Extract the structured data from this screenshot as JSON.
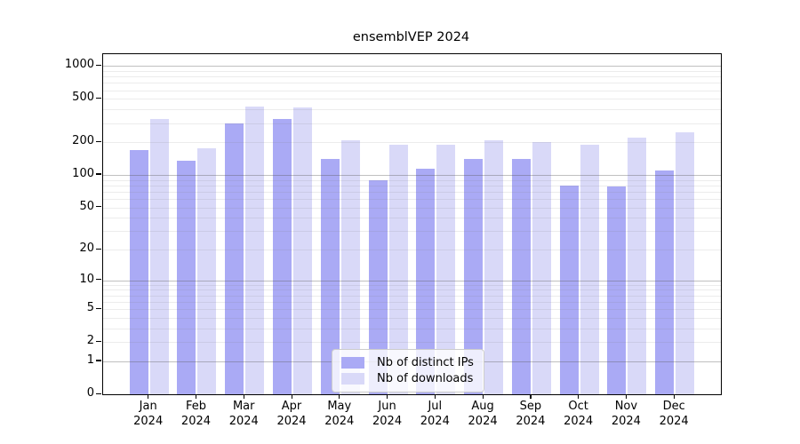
{
  "chart_data": {
    "type": "bar",
    "title": "ensemblVEP 2024",
    "y_scale": "log10(1+value)",
    "months": [
      "Jan",
      "Feb",
      "Mar",
      "Apr",
      "May",
      "Jun",
      "Jul",
      "Aug",
      "Sep",
      "Oct",
      "Nov",
      "Dec"
    ],
    "year_label": "2024",
    "series": [
      {
        "name": "Nb of distinct IPs",
        "color": "#aaaaf5",
        "values": [
          170,
          135,
          300,
          325,
          140,
          90,
          115,
          140,
          140,
          80,
          78,
          110
        ]
      },
      {
        "name": "Nb of downloads",
        "color": "#d9d9f8",
        "values": [
          325,
          175,
          425,
          420,
          210,
          190,
          190,
          210,
          200,
          190,
          220,
          245
        ]
      }
    ],
    "y_ticks": [
      0,
      1,
      2,
      5,
      10,
      20,
      50,
      100,
      200,
      500,
      1000
    ],
    "y_max": 1280,
    "grid": true,
    "legend_position": "bottom-center",
    "axis_color": "#000000",
    "background_color": "#ffffff"
  }
}
